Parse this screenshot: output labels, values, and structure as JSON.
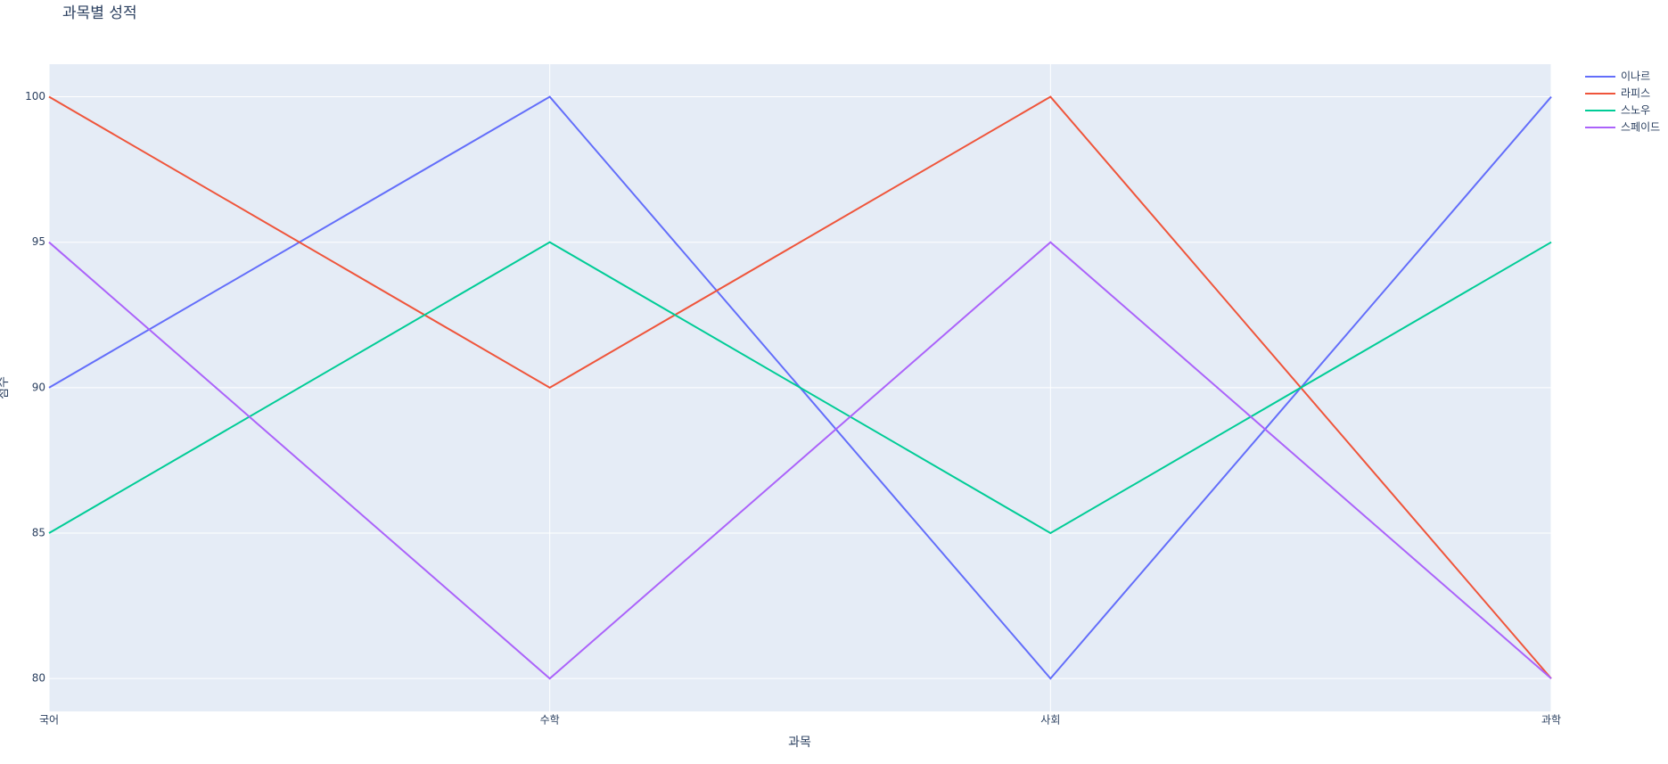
{
  "chart_data": {
    "type": "line",
    "title": "과목별 성적",
    "x_label": "과목",
    "y_label": "점수",
    "categories": [
      "국어",
      "수학",
      "사회",
      "과학"
    ],
    "series": [
      {
        "name": "이나르",
        "color": "#636efa",
        "values": [
          90,
          100,
          80,
          100
        ]
      },
      {
        "name": "라피스",
        "color": "#EF553B",
        "values": [
          100,
          90,
          100,
          80
        ]
      },
      {
        "name": "스노우",
        "color": "#00cc96",
        "values": [
          85,
          95,
          85,
          95
        ]
      },
      {
        "name": "스페이드",
        "color": "#ab63fa",
        "values": [
          95,
          80,
          95,
          80
        ]
      }
    ],
    "ylim": [
      78.87,
      101.12
    ],
    "yticks": [
      80,
      85,
      90,
      95,
      100
    ],
    "grid": true,
    "legend": "right"
  }
}
